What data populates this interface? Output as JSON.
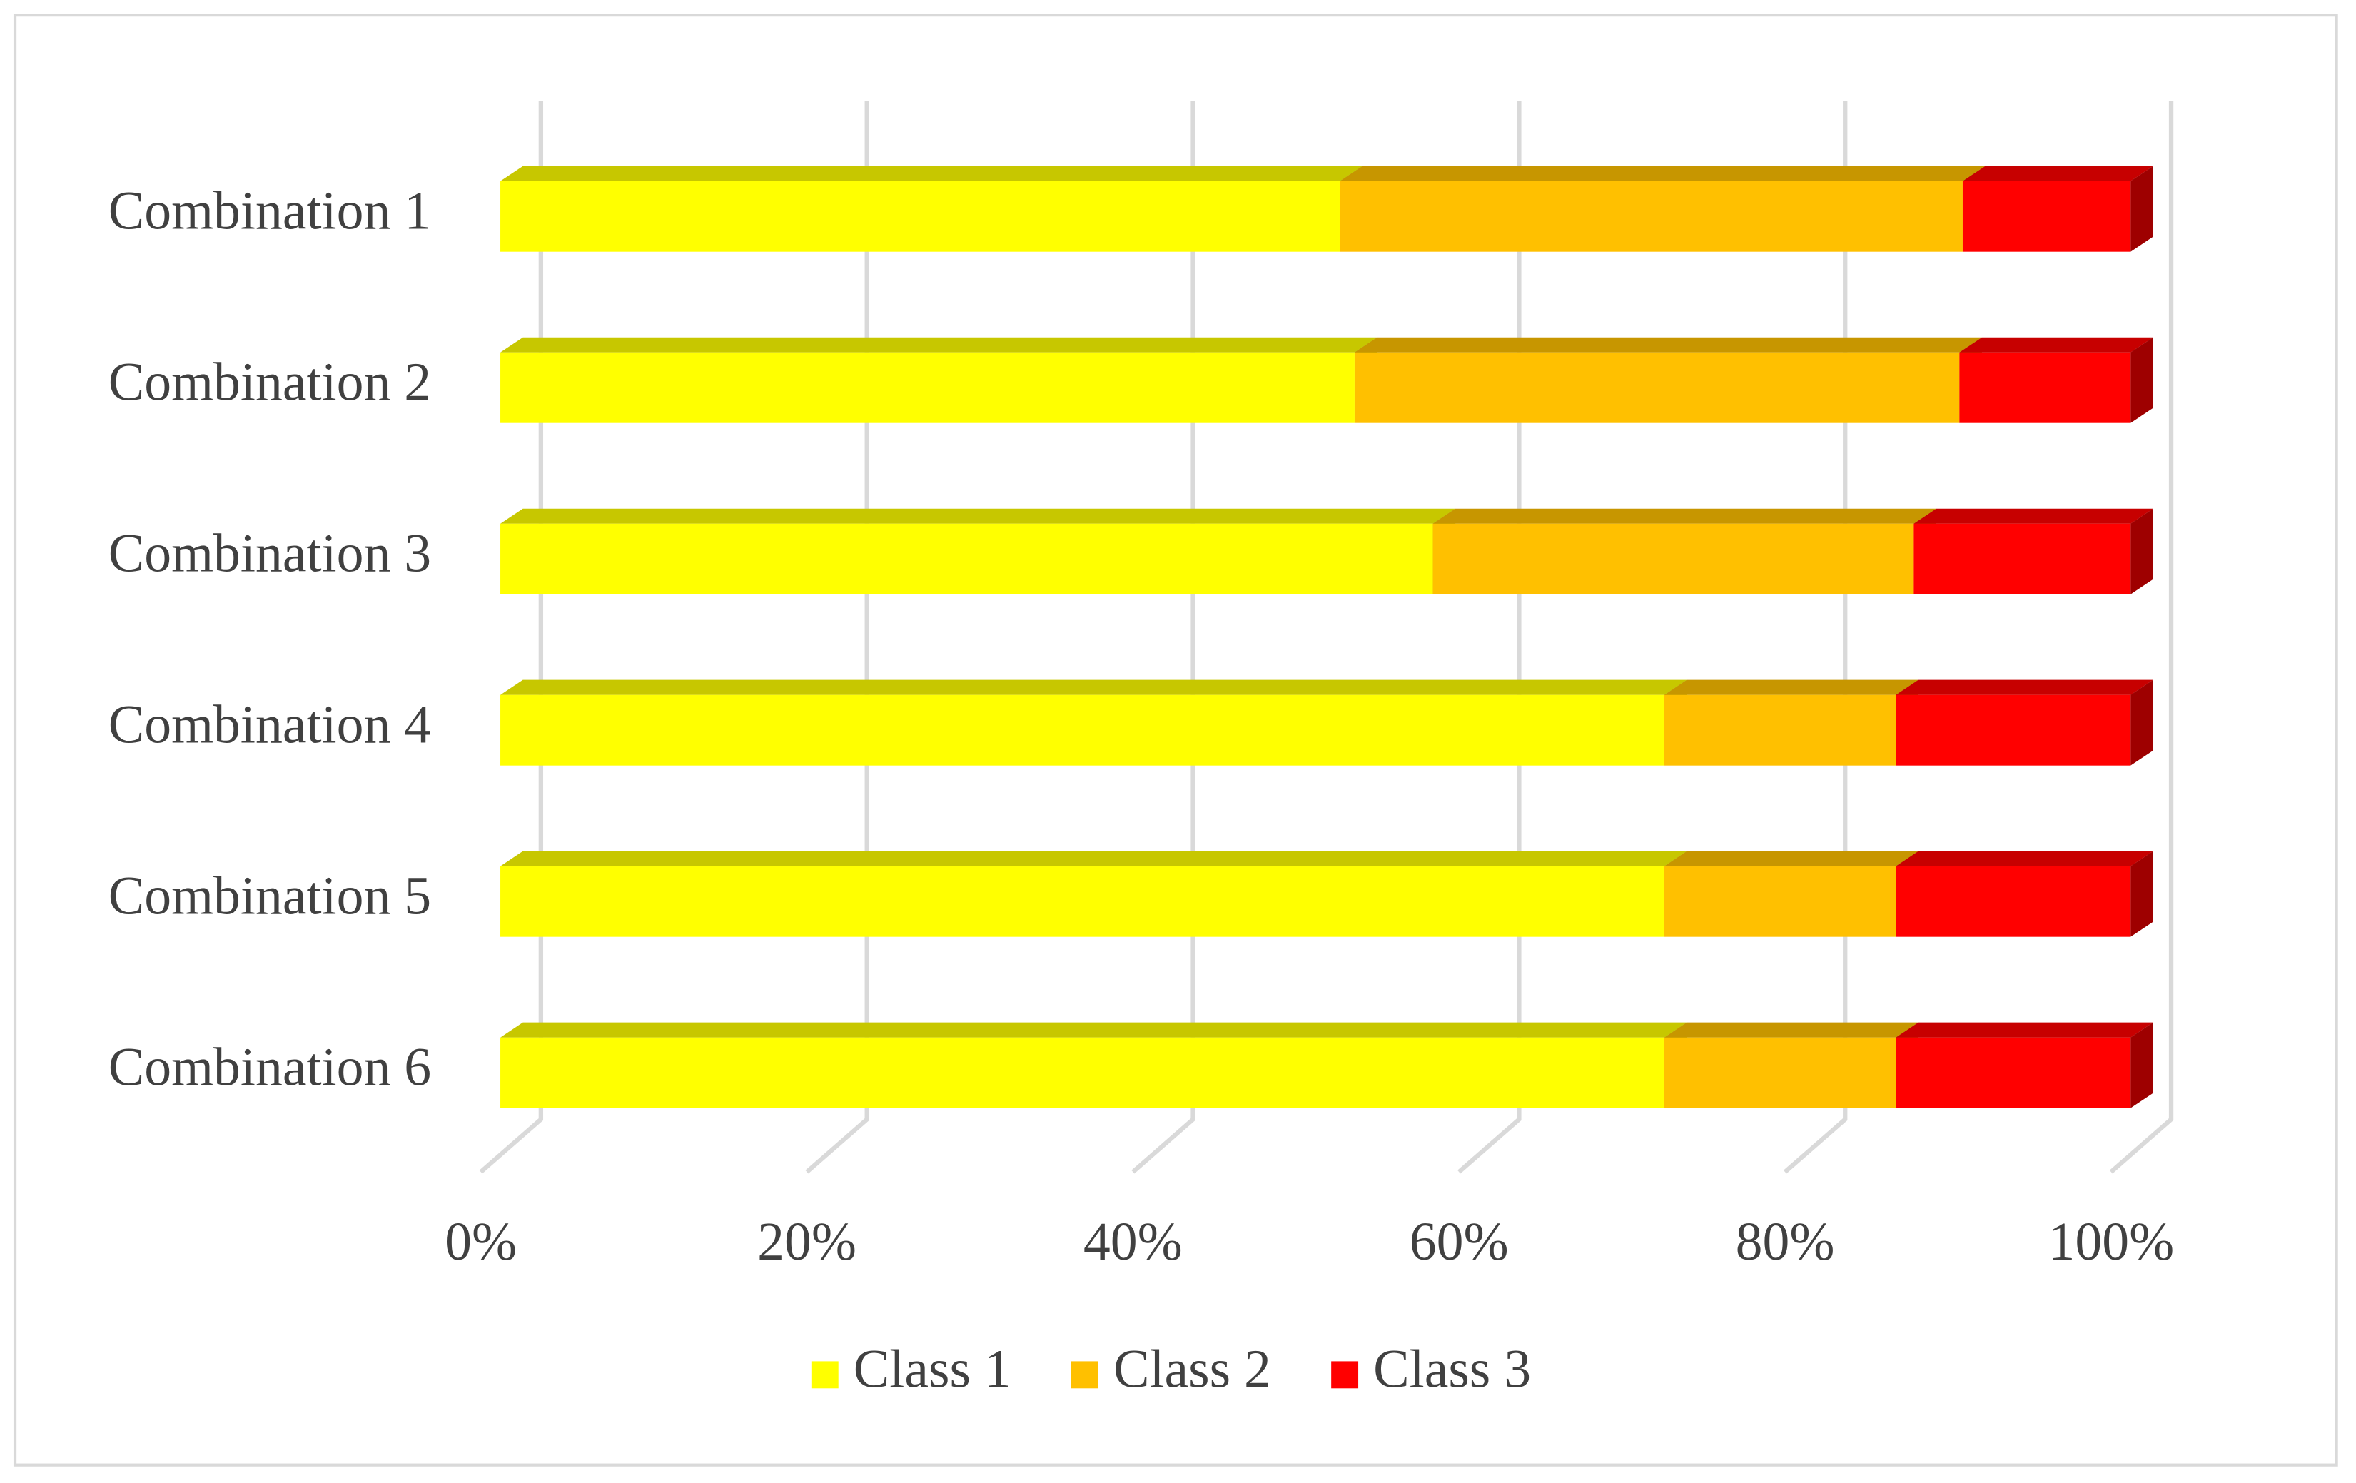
{
  "chart_data": {
    "type": "bar3d_stacked_percent",
    "orientation": "horizontal",
    "categories": [
      "Combination 1",
      "Combination 2",
      "Combination 3",
      "Combination 4",
      "Combination 5",
      "Combination 6"
    ],
    "series": [
      {
        "name": "Class 1",
        "color": "#ffff00",
        "values": [
          51.5,
          52.4,
          57.2,
          71.4,
          71.4,
          71.4
        ]
      },
      {
        "name": "Class 2",
        "color": "#ffc000",
        "values": [
          38.2,
          37.1,
          29.5,
          14.2,
          14.2,
          14.2
        ]
      },
      {
        "name": "Class 3",
        "color": "#ff0000",
        "values": [
          10.3,
          10.5,
          13.3,
          14.4,
          14.4,
          14.4
        ]
      }
    ],
    "xlim": [
      0,
      100
    ],
    "xticks": [
      {
        "value": 0,
        "label": "0%"
      },
      {
        "value": 20,
        "label": "20%"
      },
      {
        "value": 40,
        "label": "40%"
      },
      {
        "value": 60,
        "label": "60%"
      },
      {
        "value": 80,
        "label": "80%"
      },
      {
        "value": 100,
        "label": "100%"
      }
    ],
    "grid": true,
    "legend": "bottom"
  }
}
